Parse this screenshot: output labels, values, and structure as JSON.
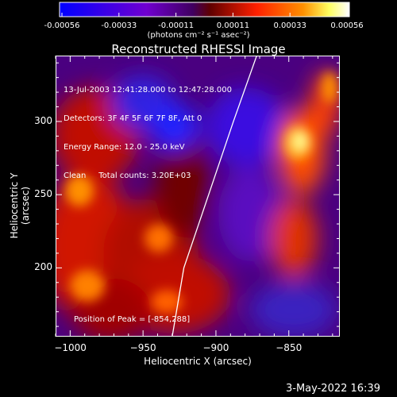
{
  "chart_data": {
    "type": "heatmap",
    "title": "Reconstructed RHESSI Image",
    "xlabel": "Heliocentric X (arcsec)",
    "ylabel": "Heliocentric Y (arcsec)",
    "xlim": [
      -1010,
      -815
    ],
    "ylim": [
      153,
      345
    ],
    "xticks": [
      -1000,
      -950,
      -900,
      -850
    ],
    "yticks": [
      200,
      250,
      300
    ],
    "colorbar": {
      "ticks": [
        "-0.00056",
        "-0.00033",
        "-0.00011",
        "0.00011",
        "0.00033",
        "0.00056"
      ],
      "unit": "(photons cm⁻² s⁻¹ asec⁻²)",
      "range": [
        -0.00056,
        0.00056
      ],
      "colors": [
        "#0000ff",
        "#8a00c8",
        "#5a0080",
        "#7a0000",
        "#ff2000",
        "#ff9000",
        "#ffff80",
        "#ffffff"
      ]
    },
    "annotations": [
      "13-Jul-2003 12:41:28.000 to 12:47:28.000",
      "Detectors: 3F 4F 5F 6F 7F 8F, Att 0",
      "Energy Range: 12.0 - 25.0 keV",
      "Clean     Total counts: 3.20E+03"
    ],
    "peak_label": "Position of Peak = [-854,288]",
    "limb": [
      [
        -930,
        153
      ],
      [
        -922,
        200
      ],
      [
        -905,
        250
      ],
      [
        -888,
        300
      ],
      [
        -872,
        345
      ]
    ]
  },
  "footer": {
    "datestamp": "3-May-2022 16:39"
  }
}
